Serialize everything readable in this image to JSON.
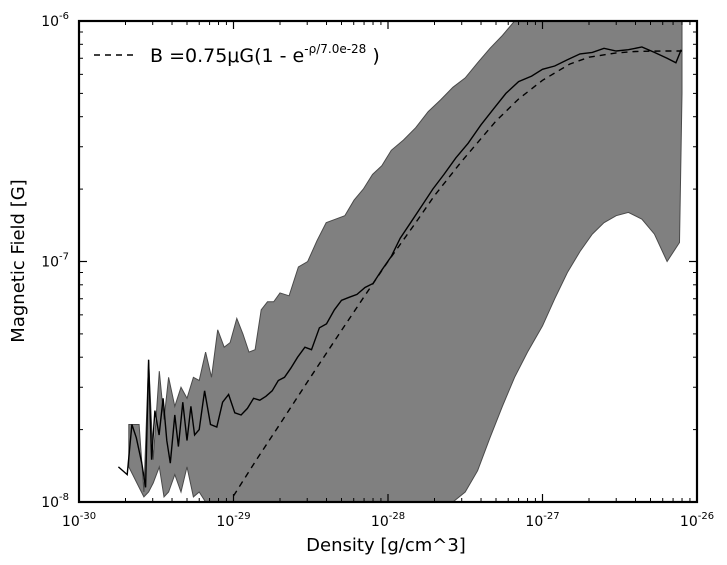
{
  "chart_data": {
    "type": "line",
    "title": "",
    "xlabel": "Density [g/cm^3]",
    "ylabel": "Magnetic Field [G]",
    "xscale": "log",
    "yscale": "log",
    "xlim": [
      1e-30,
      1e-26
    ],
    "ylim": [
      1e-08,
      1e-06
    ],
    "grid": false,
    "legend_position": "top-left",
    "x_ticks": [
      {
        "value": 1e-30,
        "base": "10",
        "exp": "-30"
      },
      {
        "value": 1e-29,
        "base": "10",
        "exp": "-29"
      },
      {
        "value": 1e-28,
        "base": "10",
        "exp": "-28"
      },
      {
        "value": 1e-27,
        "base": "10",
        "exp": "-27"
      },
      {
        "value": 1e-26,
        "base": "10",
        "exp": "-26"
      }
    ],
    "y_ticks": [
      {
        "value": 1e-08,
        "base": "10",
        "exp": "-8"
      },
      {
        "value": 1e-07,
        "base": "10",
        "exp": "-7"
      },
      {
        "value": 1e-06,
        "base": "10",
        "exp": "-6"
      }
    ],
    "legend": {
      "entries": [
        {
          "prefix": "B =0.75μG(1 - e",
          "superscript": "-ρ/7.0e-28",
          "suffix": " )",
          "style": "dashed",
          "color": "#000000"
        }
      ]
    },
    "series": [
      {
        "style": "band",
        "color": "#808080",
        "x": [
          2.1e-30,
          2.45e-30,
          2.63e-30,
          2.82e-30,
          3.02e-30,
          3.31e-30,
          3.55e-30,
          3.8e-30,
          4.17e-30,
          4.57e-30,
          5e-30,
          5.5e-30,
          6e-30,
          6.6e-30,
          7.2e-30,
          7.9e-30,
          8.7e-30,
          9.5e-30,
          1.05e-29,
          1.15e-29,
          1.26e-29,
          1.38e-29,
          1.51e-29,
          1.66e-29,
          1.82e-29,
          2e-29,
          2.29e-29,
          2.63e-29,
          3.02e-29,
          3.47e-29,
          3.98e-29,
          4.57e-29,
          5.25e-29,
          6.03e-29,
          6.92e-29,
          7.94e-29,
          9.12e-29,
          1.05e-28,
          1.26e-28,
          1.51e-28,
          1.82e-28,
          2.19e-28,
          2.63e-28,
          3.16e-28,
          3.8e-28,
          4.57e-28,
          5.5e-28,
          6.6e-28,
          8e-28,
          1e-27,
          1.2e-27,
          1.45e-27,
          1.75e-27,
          2.1e-27,
          2.5e-27,
          3e-27,
          3.6e-27,
          4.4e-27,
          5.3e-27,
          6.4e-27,
          7.7e-27,
          8e-27
        ],
        "upper": [
          2.1e-08,
          2.1e-08,
          1.1e-08,
          3.9e-08,
          1.5e-08,
          3.5e-08,
          2.2e-08,
          3.3e-08,
          2.5e-08,
          3e-08,
          2.7e-08,
          3.3e-08,
          3.2e-08,
          4.2e-08,
          3.3e-08,
          5.2e-08,
          4.4e-08,
          4.6e-08,
          5.8e-08,
          5e-08,
          4.2e-08,
          4.3e-08,
          6.3e-08,
          6.8e-08,
          6.8e-08,
          7.4e-08,
          7.2e-08,
          9.5e-08,
          1e-07,
          1.22e-07,
          1.45e-07,
          1.5e-07,
          1.55e-07,
          1.8e-07,
          2e-07,
          2.3e-07,
          2.5e-07,
          2.9e-07,
          3.2e-07,
          3.6e-07,
          4.2e-07,
          4.7e-07,
          5.3e-07,
          5.8e-07,
          6.7e-07,
          7.7e-07,
          8.7e-07,
          1e-06,
          1e-06,
          1e-06,
          1e-06,
          1e-06,
          1e-06,
          1e-06,
          1e-06,
          1e-06,
          1e-06,
          1e-06,
          1e-06,
          1e-06,
          1e-06,
          1e-06
        ],
        "lower": [
          1.4e-08,
          1.15e-08,
          1.05e-08,
          1.1e-08,
          1.2e-08,
          1.4e-08,
          1.05e-08,
          1.1e-08,
          1.3e-08,
          1.1e-08,
          1.4e-08,
          1.05e-08,
          1.1e-08,
          1e-08,
          1e-08,
          1e-08,
          1e-08,
          1e-08,
          1e-08,
          1e-08,
          1e-08,
          1e-08,
          1e-08,
          1e-08,
          1e-08,
          1e-08,
          1e-08,
          1e-08,
          1e-08,
          1e-08,
          1e-08,
          1e-08,
          1e-08,
          1e-08,
          1e-08,
          1e-08,
          1e-08,
          1e-08,
          1e-08,
          1e-08,
          1e-08,
          1e-08,
          1e-08,
          1.1e-08,
          1.35e-08,
          1.85e-08,
          2.5e-08,
          3.3e-08,
          4.2e-08,
          5.4e-08,
          7e-08,
          9e-08,
          1.1e-07,
          1.3e-07,
          1.45e-07,
          1.55e-07,
          1.6e-07,
          1.5e-07,
          1.3e-07,
          1e-07,
          1.2e-07,
          5e-07
        ]
      },
      {
        "style": "solid",
        "color": "#000000",
        "x": [
          1.8e-30,
          2.05e-30,
          2.2e-30,
          2.35e-30,
          2.55e-30,
          2.7e-30,
          2.82e-30,
          2.95e-30,
          3.1e-30,
          3.3e-30,
          3.5e-30,
          3.7e-30,
          3.9e-30,
          4.17e-30,
          4.4e-30,
          4.7e-30,
          5e-30,
          5.3e-30,
          5.6e-30,
          6e-30,
          6.5e-30,
          7.1e-30,
          7.8e-30,
          8.5e-30,
          9.3e-30,
          1.02e-29,
          1.12e-29,
          1.23e-29,
          1.35e-29,
          1.48e-29,
          1.62e-29,
          1.78e-29,
          1.95e-29,
          2.14e-29,
          2.35e-29,
          2.6e-29,
          2.9e-29,
          3.2e-29,
          3.6e-29,
          4e-29,
          4.5e-29,
          5e-29,
          5.6e-29,
          6.3e-29,
          7.1e-29,
          8e-29,
          9.1e-29,
          1.05e-28,
          1.2e-28,
          1.4e-28,
          1.65e-28,
          1.95e-28,
          2.3e-28,
          2.75e-28,
          3.3e-28,
          4e-28,
          4.8e-28,
          5.8e-28,
          7e-28,
          8.5e-28,
          1e-27,
          1.2e-27,
          1.45e-27,
          1.75e-27,
          2.1e-27,
          2.5e-27,
          3e-27,
          3.6e-27,
          4.4e-27,
          5.3e-27,
          6.4e-27,
          7.3e-27,
          7.9e-27
        ],
        "y": [
          1.4e-08,
          1.3e-08,
          2.1e-08,
          1.85e-08,
          1.45e-08,
          1.15e-08,
          3.9e-08,
          1.5e-08,
          2.4e-08,
          1.9e-08,
          2.7e-08,
          1.8e-08,
          1.45e-08,
          2.3e-08,
          1.7e-08,
          2.6e-08,
          1.8e-08,
          2.5e-08,
          1.9e-08,
          2e-08,
          2.9e-08,
          2.1e-08,
          2.05e-08,
          2.6e-08,
          2.8e-08,
          2.35e-08,
          2.3e-08,
          2.45e-08,
          2.7e-08,
          2.65e-08,
          2.75e-08,
          2.9e-08,
          3.2e-08,
          3.3e-08,
          3.6e-08,
          4e-08,
          4.4e-08,
          4.3e-08,
          5.3e-08,
          5.5e-08,
          6.3e-08,
          6.9e-08,
          7.1e-08,
          7.3e-08,
          7.8e-08,
          8.1e-08,
          9.2e-08,
          1.05e-07,
          1.25e-07,
          1.45e-07,
          1.7e-07,
          2e-07,
          2.3e-07,
          2.7e-07,
          3.1e-07,
          3.7e-07,
          4.3e-07,
          5e-07,
          5.6e-07,
          5.9e-07,
          6.3e-07,
          6.5e-07,
          6.9e-07,
          7.3e-07,
          7.4e-07,
          7.7e-07,
          7.5e-07,
          7.6e-07,
          7.8e-07,
          7.4e-07,
          7e-07,
          6.7e-07,
          7.6e-07
        ]
      },
      {
        "style": "dashed",
        "color": "#000000",
        "formula": "B = 0.75e-6 * (1 - exp(-rho / 7.0e-28))",
        "x": [
          1e-29,
          1.4e-29,
          2e-29,
          3e-29,
          5e-29,
          7e-29,
          1e-28,
          1.5e-28,
          2e-28,
          3e-28,
          5e-28,
          7e-28,
          1e-27,
          1.5e-27,
          2e-27,
          3e-27,
          4e-27,
          5e-27,
          6e-27,
          7e-27,
          8e-27
        ],
        "y": [
          1.06e-08,
          1.49e-08,
          2.11e-08,
          3.15e-08,
          5.17e-08,
          7.14e-08,
          1e-07,
          1.44e-07,
          1.88e-07,
          2.61e-07,
          3.84e-07,
          4.74e-07,
          5.67e-07,
          6.62e-07,
          7.07e-07,
          7.37e-07,
          7.47e-07,
          7.49e-07,
          7.5e-07,
          7.5e-07,
          7.5e-07
        ]
      }
    ]
  }
}
